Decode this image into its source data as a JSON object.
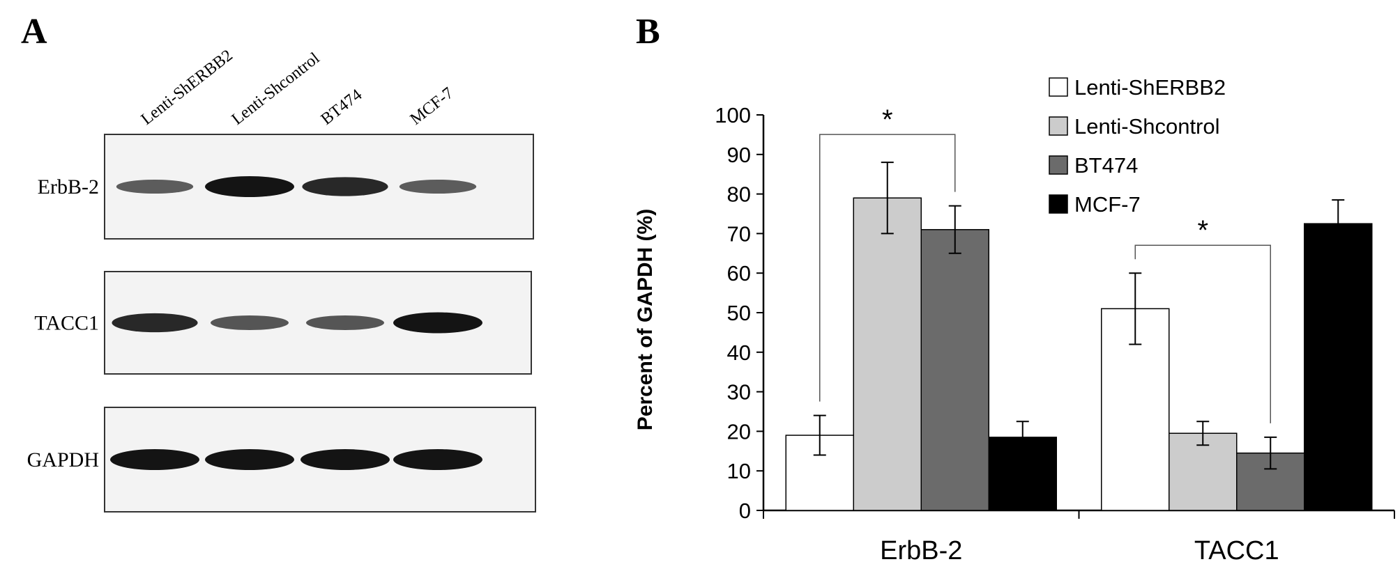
{
  "panel_a": {
    "label": "A",
    "lanes": [
      "Lenti-ShERBB2",
      "Lenti-Shcontrol",
      "BT474",
      "MCF-7"
    ],
    "blots": [
      {
        "label": "ErbB-2",
        "band_intensity": [
          0.45,
          1.0,
          0.85,
          0.45
        ]
      },
      {
        "label": "TACC1",
        "band_intensity": [
          0.85,
          0.5,
          0.5,
          1.0
        ]
      },
      {
        "label": "GAPDH",
        "band_intensity": [
          1.0,
          1.0,
          1.0,
          1.0
        ]
      }
    ]
  },
  "panel_b": {
    "label": "B"
  },
  "chart_data": {
    "type": "bar",
    "categories": [
      "ErbB-2",
      "TACC1"
    ],
    "series": [
      {
        "name": "Lenti-ShERBB2",
        "values": [
          19,
          51
        ],
        "errors": [
          5,
          9
        ],
        "color": "#ffffff"
      },
      {
        "name": "Lenti-Shcontrol",
        "values": [
          79,
          19.5
        ],
        "errors": [
          9,
          3
        ],
        "color": "#cccccc"
      },
      {
        "name": "BT474",
        "values": [
          71,
          14.5
        ],
        "errors": [
          6,
          4
        ],
        "color": "#6b6b6b"
      },
      {
        "name": "MCF-7",
        "values": [
          18.5,
          72.5
        ],
        "errors": [
          4,
          6
        ],
        "color": "#000000"
      }
    ],
    "ylabel": "Percent of GAPDH (%)",
    "xlabel": "",
    "ylim": [
      0,
      100
    ],
    "yticks": [
      0,
      10,
      20,
      30,
      40,
      50,
      60,
      70,
      80,
      90,
      100
    ],
    "legend_position": "top-right",
    "significance": [
      {
        "category": "ErbB-2",
        "from_series": 0,
        "to_series": 2,
        "label": "*"
      },
      {
        "category": "TACC1",
        "from_series": 0,
        "to_series": 2,
        "label": "*"
      }
    ]
  }
}
